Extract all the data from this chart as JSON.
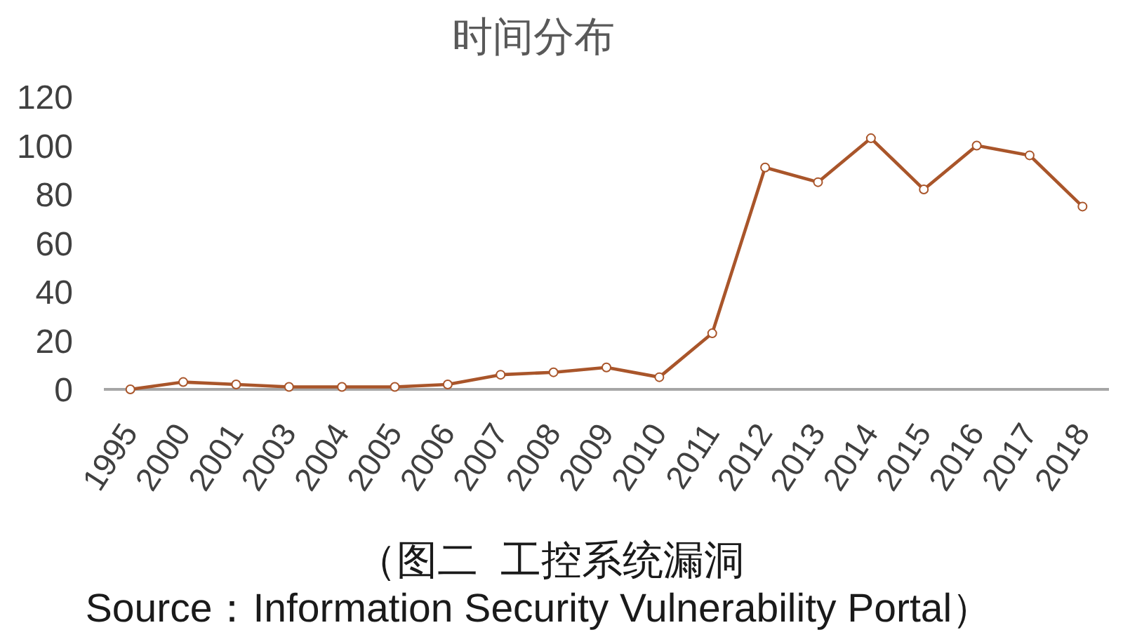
{
  "chart_data": {
    "type": "line",
    "title": "时间分布",
    "categories": [
      "1995",
      "2000",
      "2001",
      "2003",
      "2004",
      "2005",
      "2006",
      "2007",
      "2008",
      "2009",
      "2010",
      "2011",
      "2012",
      "2013",
      "2014",
      "2015",
      "2016",
      "2017",
      "2018"
    ],
    "values": [
      0,
      3,
      2,
      1,
      1,
      1,
      2,
      6,
      7,
      9,
      5,
      23,
      91,
      85,
      103,
      82,
      100,
      96,
      75
    ],
    "color": "#a9552a",
    "marker": "circle",
    "line_style": "solid",
    "ylim": [
      0,
      120
    ],
    "yticks": [
      0,
      20,
      40,
      60,
      80,
      100,
      120
    ],
    "annotations": [
      "（图二  工控系统漏洞",
      "Source：Information Security Vulnerability Portal）"
    ]
  }
}
